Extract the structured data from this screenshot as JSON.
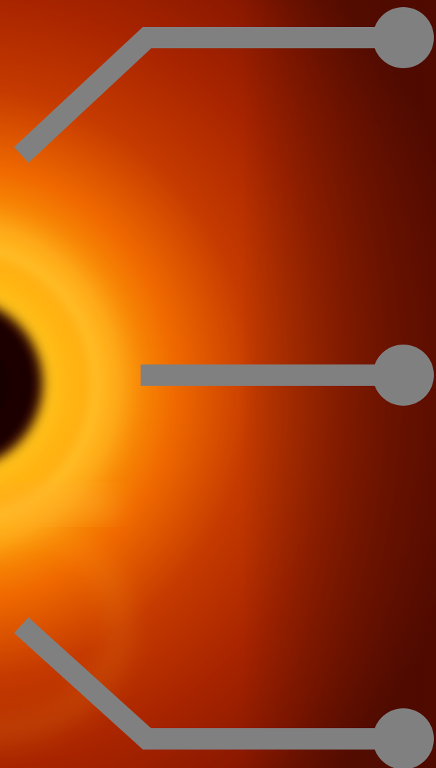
{
  "scene": {
    "subject": "black-hole-accretion-disk-render",
    "palette": {
      "shadow": "#1a0200",
      "inner_glow": "#ffc21a",
      "mid_glow": "#ff8c00",
      "outer_red": "#b32400",
      "edge_dark": "#5a0d00",
      "callout_gray": "#808080"
    }
  },
  "callouts": [
    {
      "id": "top",
      "color": "#808080"
    },
    {
      "id": "middle",
      "color": "#808080"
    },
    {
      "id": "bottom",
      "color": "#808080"
    }
  ]
}
